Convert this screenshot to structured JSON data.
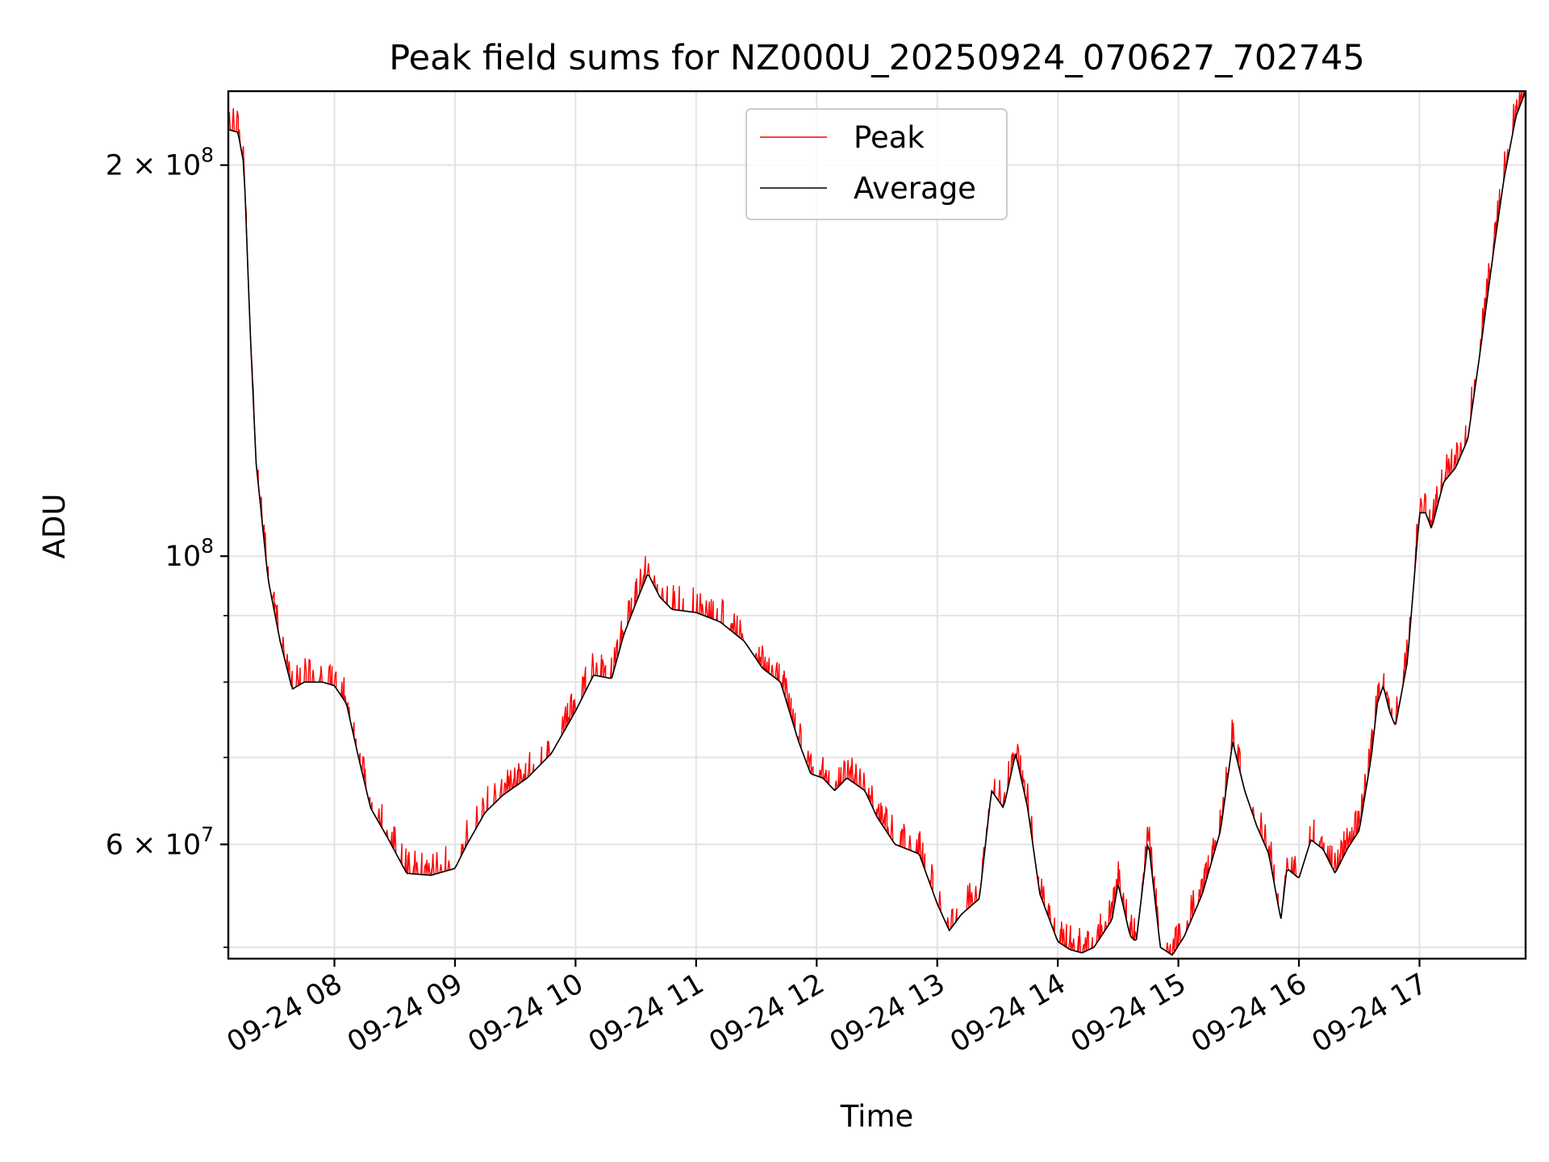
{
  "chart_data": {
    "type": "line",
    "title": "Peak field sums for NZ000U_20250924_070627_702745",
    "xlabel": "Time",
    "ylabel": "ADU",
    "yscale": "log",
    "xlim": [
      7.12,
      17.88
    ],
    "ylim": [
      49000000,
      228000000
    ],
    "grid": true,
    "legend_position": "top-center",
    "x_ticks": [
      {
        "value": 8,
        "label": "09-24 08"
      },
      {
        "value": 9,
        "label": "09-24 09"
      },
      {
        "value": 10,
        "label": "09-24 10"
      },
      {
        "value": 11,
        "label": "09-24 11"
      },
      {
        "value": 12,
        "label": "09-24 12"
      },
      {
        "value": 13,
        "label": "09-24 13"
      },
      {
        "value": 14,
        "label": "09-24 14"
      },
      {
        "value": 15,
        "label": "09-24 15"
      },
      {
        "value": 16,
        "label": "09-24 16"
      },
      {
        "value": 17,
        "label": "09-24 17"
      }
    ],
    "y_major_ticks": [
      {
        "value": 60000000,
        "label_base": "6 × 10",
        "label_exp": "7"
      },
      {
        "value": 100000000,
        "label_base": "10",
        "label_exp": "8"
      },
      {
        "value": 200000000,
        "label_base": "2 × 10",
        "label_exp": "8"
      }
    ],
    "y_minor_ticks": [
      50000000,
      70000000,
      80000000,
      90000000
    ],
    "series": [
      {
        "name": "Peak",
        "color": "#ff0000",
        "noise_amplitude": 0.035
      },
      {
        "name": "Average",
        "color": "#000000",
        "points": [
          [
            7.12,
            213000000
          ],
          [
            7.2,
            212000000
          ],
          [
            7.25,
            200000000
          ],
          [
            7.3,
            150000000
          ],
          [
            7.35,
            118000000
          ],
          [
            7.45,
            96000000
          ],
          [
            7.55,
            86000000
          ],
          [
            7.65,
            79000000
          ],
          [
            7.75,
            80000000
          ],
          [
            7.9,
            80000000
          ],
          [
            8.0,
            79500000
          ],
          [
            8.1,
            77000000
          ],
          [
            8.2,
            70000000
          ],
          [
            8.3,
            64000000
          ],
          [
            8.45,
            60500000
          ],
          [
            8.6,
            57000000
          ],
          [
            8.8,
            56800000
          ],
          [
            9.0,
            57500000
          ],
          [
            9.1,
            60000000
          ],
          [
            9.25,
            63500000
          ],
          [
            9.4,
            65500000
          ],
          [
            9.6,
            67500000
          ],
          [
            9.8,
            70500000
          ],
          [
            10.0,
            76000000
          ],
          [
            10.15,
            81000000
          ],
          [
            10.3,
            80500000
          ],
          [
            10.4,
            87000000
          ],
          [
            10.5,
            92000000
          ],
          [
            10.6,
            97000000
          ],
          [
            10.7,
            93000000
          ],
          [
            10.8,
            91000000
          ],
          [
            11.0,
            90500000
          ],
          [
            11.2,
            89000000
          ],
          [
            11.4,
            86000000
          ],
          [
            11.55,
            82000000
          ],
          [
            11.7,
            80000000
          ],
          [
            11.85,
            72000000
          ],
          [
            11.95,
            68000000
          ],
          [
            12.05,
            67500000
          ],
          [
            12.15,
            66000000
          ],
          [
            12.25,
            67500000
          ],
          [
            12.4,
            66000000
          ],
          [
            12.5,
            63000000
          ],
          [
            12.65,
            60000000
          ],
          [
            12.85,
            59000000
          ],
          [
            13.0,
            54000000
          ],
          [
            13.1,
            51500000
          ],
          [
            13.2,
            53000000
          ],
          [
            13.35,
            54500000
          ],
          [
            13.45,
            66000000
          ],
          [
            13.55,
            64000000
          ],
          [
            13.65,
            70500000
          ],
          [
            13.75,
            64000000
          ],
          [
            13.85,
            55000000
          ],
          [
            14.0,
            50500000
          ],
          [
            14.1,
            49800000
          ],
          [
            14.2,
            49500000
          ],
          [
            14.3,
            50000000
          ],
          [
            14.45,
            52500000
          ],
          [
            14.5,
            56000000
          ],
          [
            14.6,
            51000000
          ],
          [
            14.65,
            50500000
          ],
          [
            14.75,
            60500000
          ],
          [
            14.85,
            50000000
          ],
          [
            14.95,
            49300000
          ],
          [
            15.05,
            51000000
          ],
          [
            15.2,
            55000000
          ],
          [
            15.35,
            61500000
          ],
          [
            15.45,
            72000000
          ],
          [
            15.55,
            66000000
          ],
          [
            15.65,
            62000000
          ],
          [
            15.75,
            59000000
          ],
          [
            15.85,
            52500000
          ],
          [
            15.9,
            57500000
          ],
          [
            16.0,
            56500000
          ],
          [
            16.1,
            60500000
          ],
          [
            16.2,
            59500000
          ],
          [
            16.3,
            57000000
          ],
          [
            16.4,
            59500000
          ],
          [
            16.5,
            61500000
          ],
          [
            16.6,
            70000000
          ],
          [
            16.65,
            77000000
          ],
          [
            16.7,
            79500000
          ],
          [
            16.75,
            76000000
          ],
          [
            16.8,
            74000000
          ],
          [
            16.9,
            83000000
          ],
          [
            17.0,
            108000000
          ],
          [
            17.05,
            108000000
          ],
          [
            17.1,
            105000000
          ],
          [
            17.2,
            114000000
          ],
          [
            17.3,
            117000000
          ],
          [
            17.4,
            123000000
          ],
          [
            17.5,
            143000000
          ],
          [
            17.6,
            168000000
          ],
          [
            17.7,
            195000000
          ],
          [
            17.8,
            218000000
          ],
          [
            17.88,
            228000000
          ]
        ]
      }
    ]
  }
}
